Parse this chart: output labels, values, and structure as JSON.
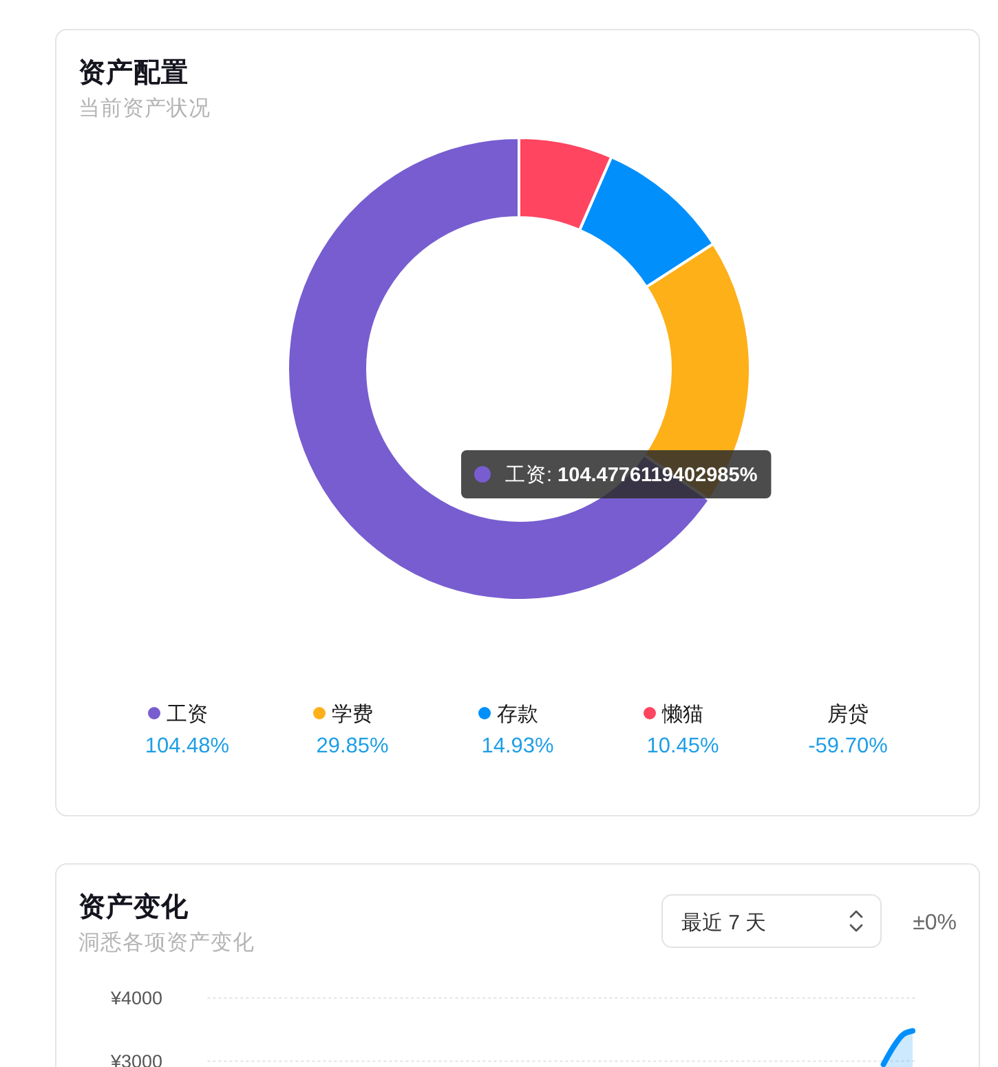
{
  "chart_data": [
    {
      "type": "donut",
      "title": "资产配置",
      "subtitle": "当前资产状况",
      "categories": [
        "工资",
        "学费",
        "存款",
        "懒猫",
        "房贷"
      ],
      "values": [
        104.48,
        29.85,
        14.93,
        10.45,
        null
      ],
      "colors": [
        "#775dd0",
        "#feb019",
        "#008ffb",
        "#ff4560",
        null
      ],
      "value_labels": [
        "104.48%",
        "29.85%",
        "14.93%",
        "10.45%",
        "-59.70%"
      ],
      "legend": "bottom",
      "annotations": [
        "工资: 104.4776119402985%"
      ]
    },
    {
      "type": "area",
      "title": "资产变化",
      "subtitle": "洞悉各项资产变化",
      "categories": [
        null,
        null,
        null,
        null,
        null,
        null,
        null,
        null,
        null,
        null,
        null,
        null,
        null,
        null,
        null,
        null,
        null,
        null,
        null,
        null,
        null,
        null,
        null,
        null,
        null,
        null,
        null,
        null,
        null,
        null,
        null,
        null,
        null,
        null,
        null,
        null,
        null,
        null,
        null,
        null,
        null,
        null,
        null,
        null,
        null,
        null,
        null,
        null,
        null,
        null,
        null,
        null,
        null,
        null,
        null,
        null,
        null,
        null,
        null,
        null,
        null,
        null,
        null,
        null,
        null,
        null,
        null,
        null,
        null,
        null,
        null,
        null,
        null
      ],
      "series": [
        {
          "color": "#008ffb",
          "values": [
            null,
            null,
            null,
            null,
            null,
            null,
            null,
            null,
            null,
            null,
            null,
            null,
            null,
            null,
            null,
            null,
            null,
            null,
            null,
            null,
            null,
            null,
            null,
            null,
            null,
            null,
            null,
            null,
            null,
            null,
            null,
            null,
            null,
            null,
            null,
            null,
            null,
            null,
            null,
            null,
            null,
            null,
            null,
            null,
            null,
            null,
            null,
            null,
            null,
            null,
            null,
            null,
            null,
            null,
            null,
            null,
            null,
            null,
            null,
            null,
            null,
            null,
            null,
            null,
            null,
            null,
            null,
            null,
            null,
            2950,
            3220,
            3420,
            3480
          ]
        }
      ],
      "ylim": [
        0,
        4000
      ],
      "yticks": [
        {
          "value": 3000,
          "label": "¥3000"
        },
        {
          "value": 4000,
          "label": "¥4000"
        }
      ],
      "grid": "y",
      "annotations": [
        "最近 7 天",
        "±0%"
      ]
    }
  ]
}
